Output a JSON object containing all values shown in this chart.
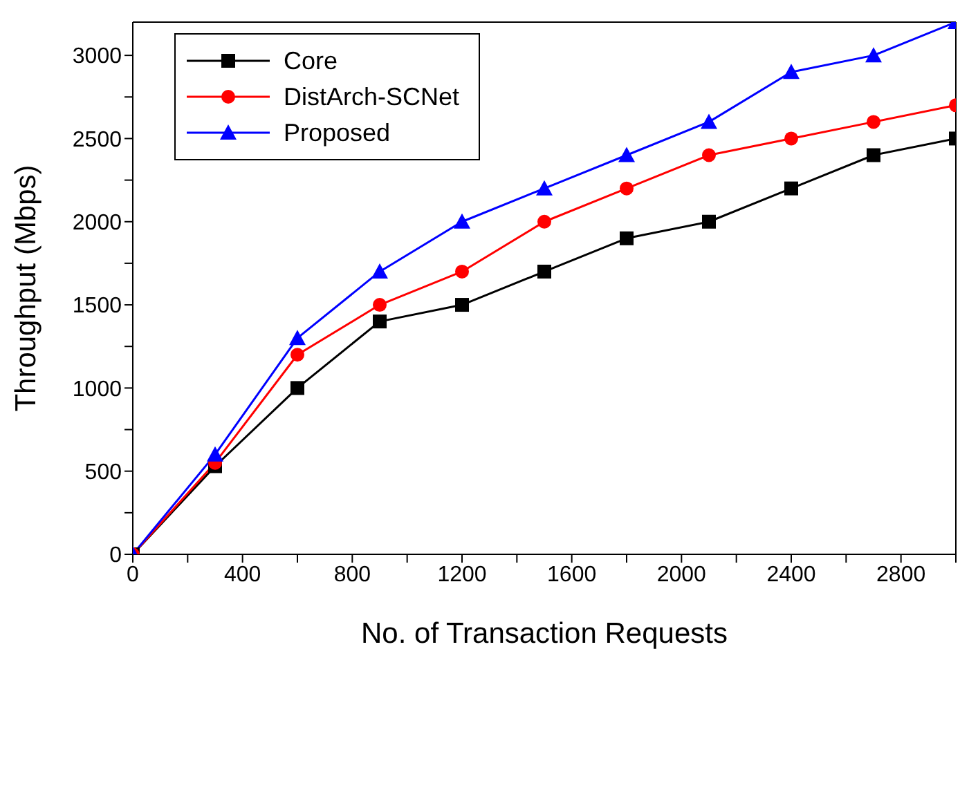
{
  "chart_data": {
    "type": "line",
    "xlabel": "No. of Transaction Requests",
    "ylabel": "Throughput (Mbps)",
    "x": [
      0,
      300,
      600,
      900,
      1200,
      1500,
      1800,
      2100,
      2400,
      2700,
      3000
    ],
    "series": [
      {
        "name": "Core",
        "color": "#000000",
        "marker": "square",
        "values": [
          0,
          530,
          1000,
          1400,
          1500,
          1700,
          1900,
          2000,
          2200,
          2400,
          2500
        ]
      },
      {
        "name": "DistArch-SCNet",
        "color": "#ff0000",
        "marker": "circle",
        "values": [
          0,
          550,
          1200,
          1500,
          1700,
          2000,
          2200,
          2400,
          2500,
          2600,
          2700
        ]
      },
      {
        "name": "Proposed",
        "color": "#0000ff",
        "marker": "triangle",
        "values": [
          0,
          600,
          1300,
          1700,
          2000,
          2200,
          2400,
          2600,
          2900,
          3000,
          3200
        ]
      }
    ],
    "xlim": [
      0,
      3000
    ],
    "xticks": [
      0,
      {
        "value": 200,
        "label": null
      },
      400,
      {
        "value": 600,
        "label": null
      },
      800,
      {
        "value": 1000,
        "label": null
      },
      1200,
      {
        "value": 1400,
        "label": null
      },
      1600,
      {
        "value": 1800,
        "label": null
      },
      2000,
      {
        "value": 2200,
        "label": null
      },
      2400,
      {
        "value": 2600,
        "label": null
      },
      2800,
      {
        "value": 3000,
        "label": null
      }
    ],
    "ylim": [
      0,
      3200
    ],
    "yticks": [
      0,
      {
        "value": 250,
        "label": null
      },
      500,
      {
        "value": 750,
        "label": null
      },
      1000,
      {
        "value": 1250,
        "label": null
      },
      1500,
      {
        "value": 1750,
        "label": null
      },
      2000,
      {
        "value": 2250,
        "label": null
      },
      2500,
      {
        "value": 2750,
        "label": null
      },
      3000
    ],
    "grid": false,
    "legend": "top left",
    "line_style": "solid"
  }
}
